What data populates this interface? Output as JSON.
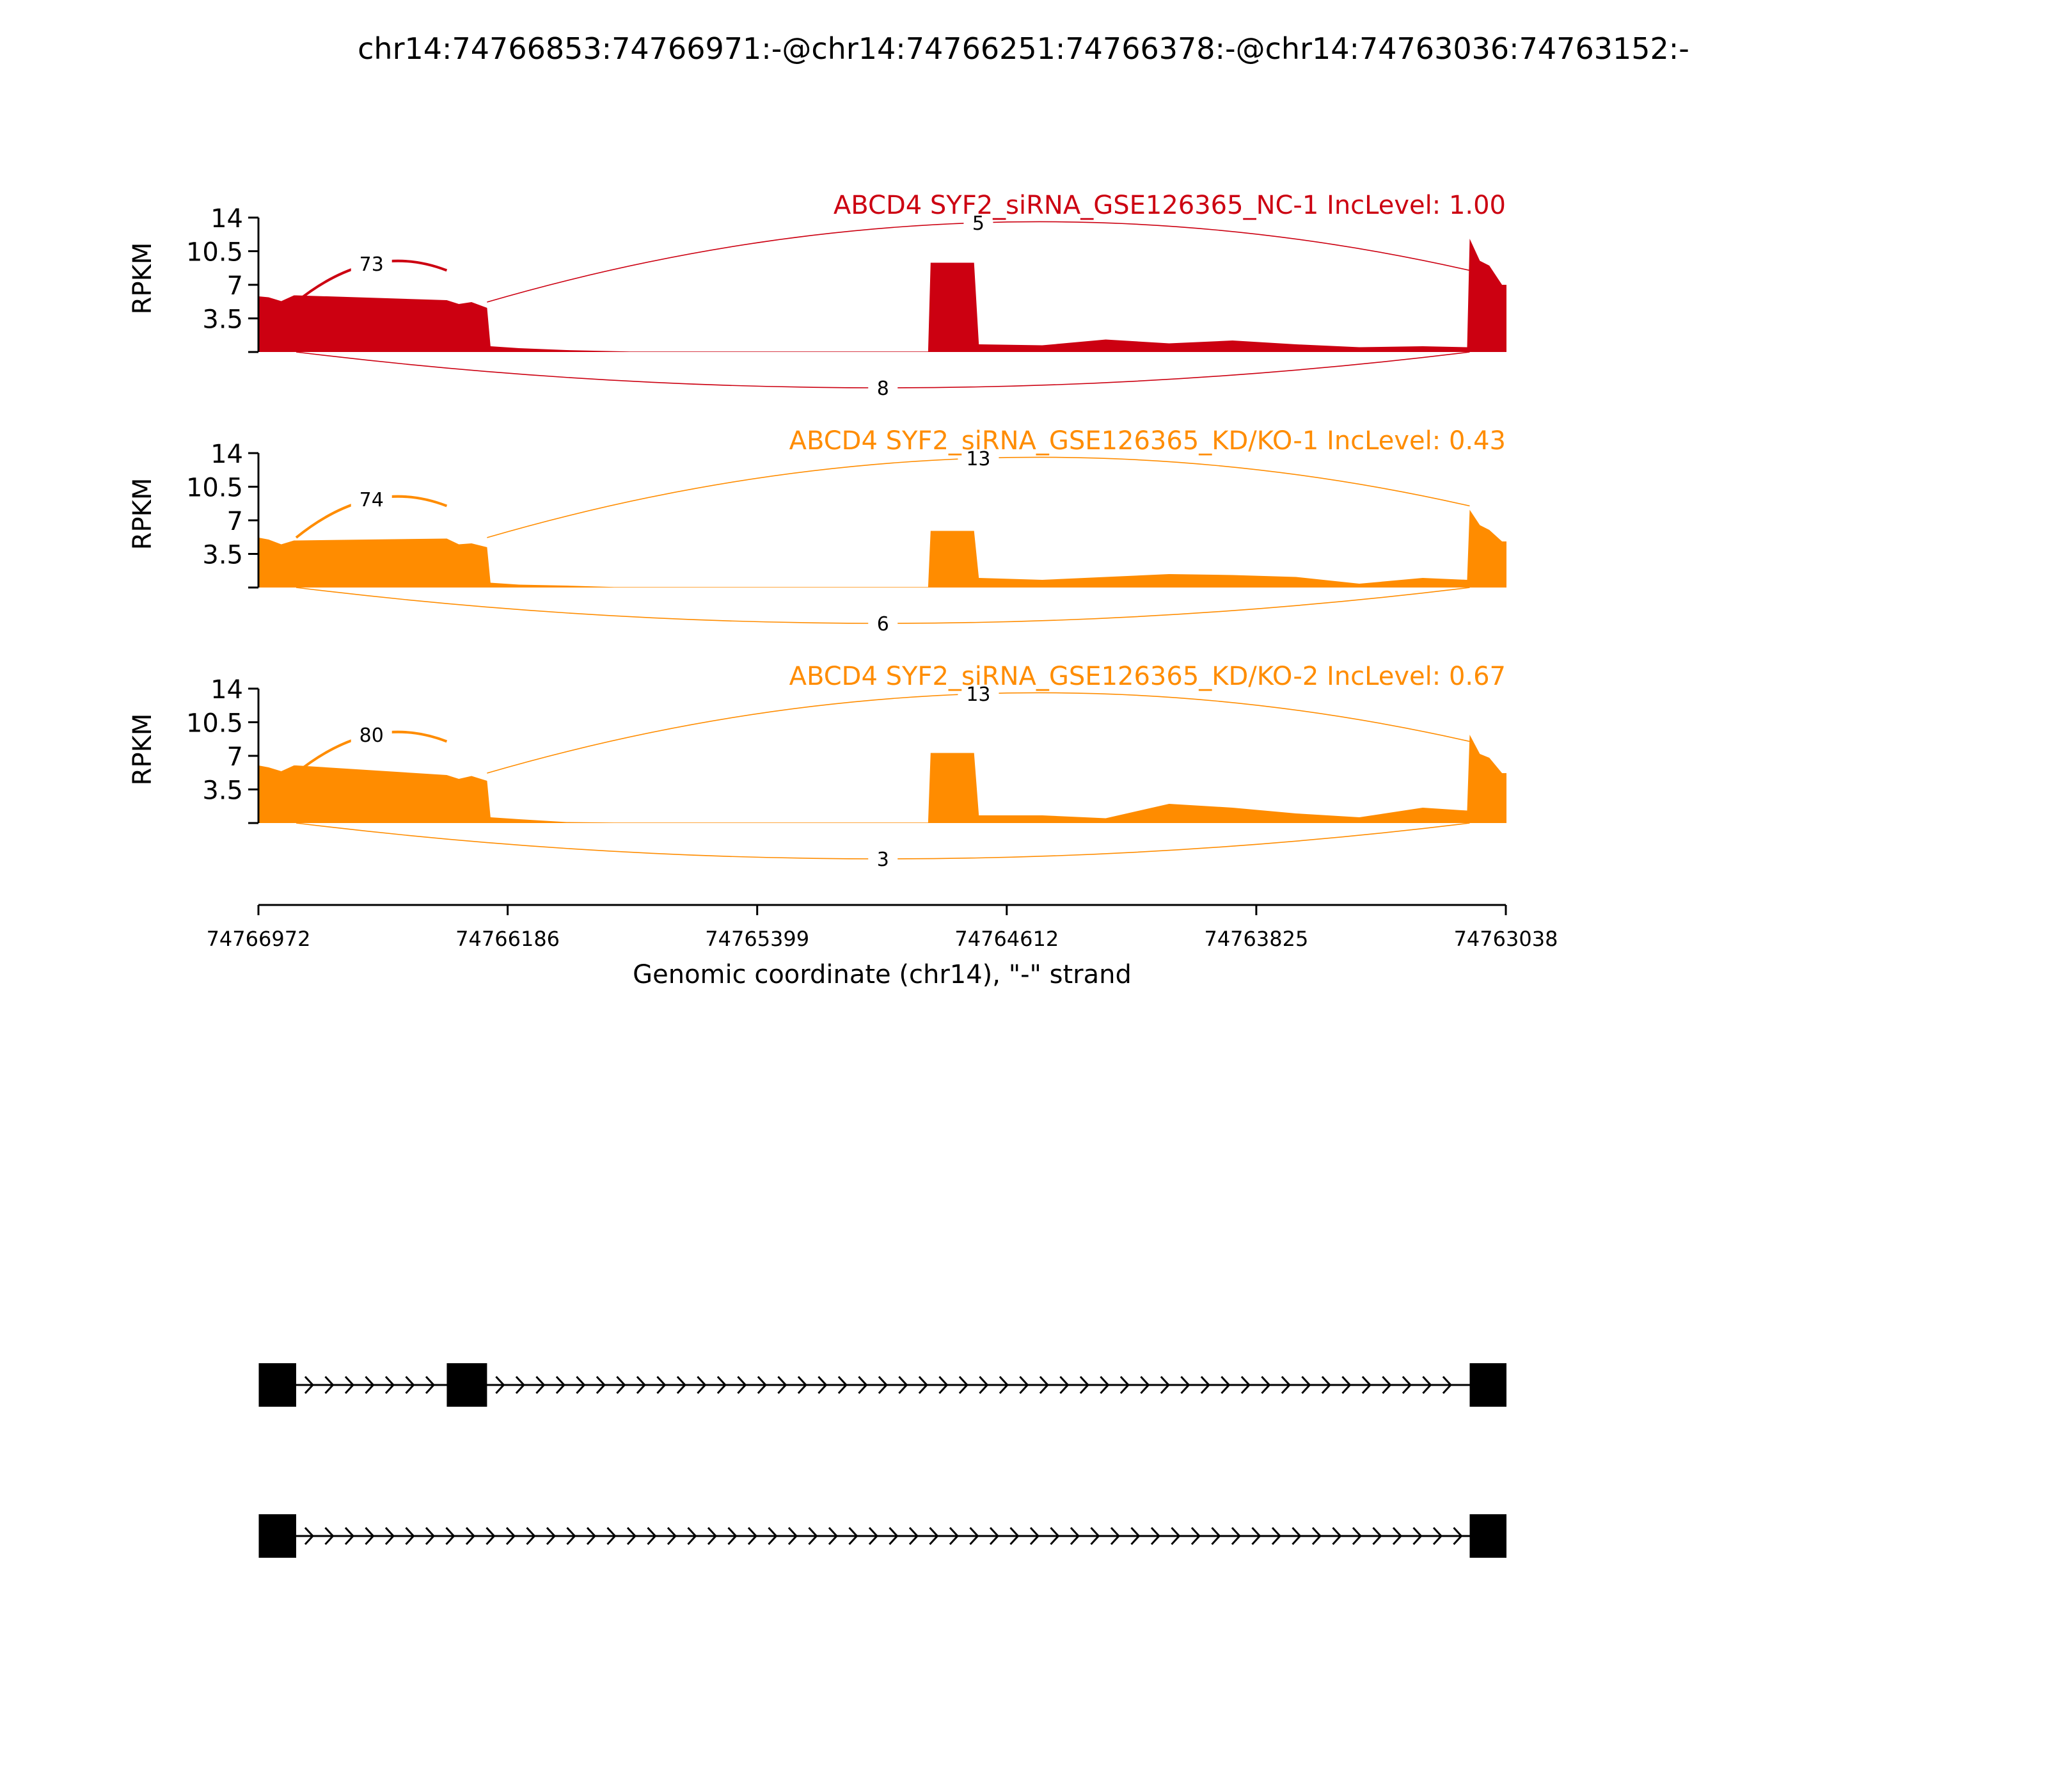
{
  "title": "chr14:74766853:74766971:-@chr14:74766251:74766378:-@chr14:74763036:74763152:-",
  "colors": {
    "nc": "#cc0011",
    "kd": "#ff8c00",
    "axis": "#000000"
  },
  "chart_data": {
    "type": "sashimi",
    "ylabel": "RPKM",
    "yticks": [
      "14",
      "10.5",
      "7",
      "3.5"
    ],
    "ylim": [
      0,
      14
    ],
    "xlabel": "Genomic coordinate (chr14), \"-\" strand",
    "xticks": [
      "74766972",
      "74766186",
      "74765399",
      "74764612",
      "74763825",
      "74763038"
    ],
    "xlim": [
      74766972,
      74763038
    ],
    "exons": [
      [
        74766971,
        74766853
      ],
      [
        74766378,
        74766251
      ],
      [
        74764852,
        74764715
      ],
      [
        74763152,
        74763036
      ]
    ],
    "samples": [
      {
        "label": "ABCD4 SYF2_siRNA_GSE126365_NC-1 IncLevel: 1.00",
        "color": "#cc0011",
        "coverage": [
          [
            74766972,
            5.8
          ],
          [
            74766940,
            5.7
          ],
          [
            74766900,
            5.3
          ],
          [
            74766860,
            5.9
          ],
          [
            74766853,
            5.9
          ],
          [
            74766378,
            5.4
          ],
          [
            74766340,
            5.0
          ],
          [
            74766300,
            5.2
          ],
          [
            74766251,
            4.6
          ],
          [
            74766240,
            0.6
          ],
          [
            74766150,
            0.4
          ],
          [
            74766000,
            0.2
          ],
          [
            74765800,
            0.05
          ],
          [
            74764860,
            0.05
          ],
          [
            74764852,
            9.3
          ],
          [
            74764780,
            9.3
          ],
          [
            74764715,
            9.3
          ],
          [
            74764700,
            0.8
          ],
          [
            74764500,
            0.7
          ],
          [
            74764300,
            1.3
          ],
          [
            74764100,
            0.9
          ],
          [
            74763900,
            1.2
          ],
          [
            74763700,
            0.8
          ],
          [
            74763500,
            0.5
          ],
          [
            74763300,
            0.6
          ],
          [
            74763160,
            0.5
          ],
          [
            74763152,
            11.8
          ],
          [
            74763120,
            9.5
          ],
          [
            74763090,
            9.0
          ],
          [
            74763050,
            7.0
          ],
          [
            74763036,
            7.0
          ]
        ],
        "junctions": [
          {
            "count": "73",
            "from": 74766853,
            "to": 74766378,
            "side": "above"
          },
          {
            "count": "5",
            "from": 74766251,
            "to": 74763152,
            "side": "above"
          },
          {
            "count": "8",
            "from": 74766853,
            "to": 74763152,
            "side": "below"
          }
        ]
      },
      {
        "label": "ABCD4 SYF2_siRNA_GSE126365_KD/KO-1 IncLevel: 0.43",
        "color": "#ff8c00",
        "coverage": [
          [
            74766972,
            5.2
          ],
          [
            74766940,
            5.0
          ],
          [
            74766900,
            4.5
          ],
          [
            74766860,
            4.9
          ],
          [
            74766853,
            4.9
          ],
          [
            74766378,
            5.1
          ],
          [
            74766340,
            4.5
          ],
          [
            74766300,
            4.6
          ],
          [
            74766251,
            4.2
          ],
          [
            74766240,
            0.5
          ],
          [
            74766150,
            0.3
          ],
          [
            74766000,
            0.2
          ],
          [
            74765850,
            0.05
          ],
          [
            74764860,
            0.05
          ],
          [
            74764852,
            5.9
          ],
          [
            74764780,
            5.9
          ],
          [
            74764715,
            5.9
          ],
          [
            74764700,
            1.0
          ],
          [
            74764500,
            0.8
          ],
          [
            74764300,
            1.1
          ],
          [
            74764100,
            1.4
          ],
          [
            74763900,
            1.3
          ],
          [
            74763700,
            1.1
          ],
          [
            74763500,
            0.4
          ],
          [
            74763300,
            1.0
          ],
          [
            74763160,
            0.8
          ],
          [
            74763152,
            8.1
          ],
          [
            74763120,
            6.5
          ],
          [
            74763090,
            6.0
          ],
          [
            74763050,
            4.8
          ],
          [
            74763036,
            4.8
          ]
        ],
        "junctions": [
          {
            "count": "74",
            "from": 74766853,
            "to": 74766378,
            "side": "above"
          },
          {
            "count": "13",
            "from": 74766251,
            "to": 74763152,
            "side": "above"
          },
          {
            "count": "6",
            "from": 74766853,
            "to": 74763152,
            "side": "below"
          }
        ]
      },
      {
        "label": "ABCD4 SYF2_siRNA_GSE126365_KD/KO-2 IncLevel: 0.67",
        "color": "#ff8c00",
        "coverage": [
          [
            74766972,
            6.0
          ],
          [
            74766940,
            5.8
          ],
          [
            74766900,
            5.4
          ],
          [
            74766860,
            6.0
          ],
          [
            74766853,
            6.0
          ],
          [
            74766378,
            5.0
          ],
          [
            74766340,
            4.6
          ],
          [
            74766300,
            4.9
          ],
          [
            74766251,
            4.4
          ],
          [
            74766240,
            0.6
          ],
          [
            74766150,
            0.4
          ],
          [
            74766000,
            0.1
          ],
          [
            74765850,
            0.05
          ],
          [
            74764860,
            0.05
          ],
          [
            74764852,
            7.3
          ],
          [
            74764780,
            7.3
          ],
          [
            74764715,
            7.3
          ],
          [
            74764700,
            0.8
          ],
          [
            74764500,
            0.8
          ],
          [
            74764300,
            0.5
          ],
          [
            74764100,
            2.0
          ],
          [
            74763900,
            1.6
          ],
          [
            74763700,
            1.0
          ],
          [
            74763500,
            0.6
          ],
          [
            74763300,
            1.6
          ],
          [
            74763160,
            1.3
          ],
          [
            74763152,
            9.2
          ],
          [
            74763120,
            7.2
          ],
          [
            74763090,
            6.8
          ],
          [
            74763050,
            5.2
          ],
          [
            74763036,
            5.2
          ]
        ],
        "junctions": [
          {
            "count": "80",
            "from": 74766853,
            "to": 74766378,
            "side": "above"
          },
          {
            "count": "13",
            "from": 74766251,
            "to": 74763152,
            "side": "above"
          },
          {
            "count": "3",
            "from": 74766853,
            "to": 74763152,
            "side": "below"
          }
        ]
      }
    ],
    "isoforms": [
      {
        "exons": [
          [
            74766971,
            74766853
          ],
          [
            74766378,
            74766251
          ],
          [
            74763152,
            74763036
          ]
        ]
      },
      {
        "exons": [
          [
            74766971,
            74766853
          ],
          [
            74763152,
            74763036
          ]
        ]
      }
    ]
  }
}
